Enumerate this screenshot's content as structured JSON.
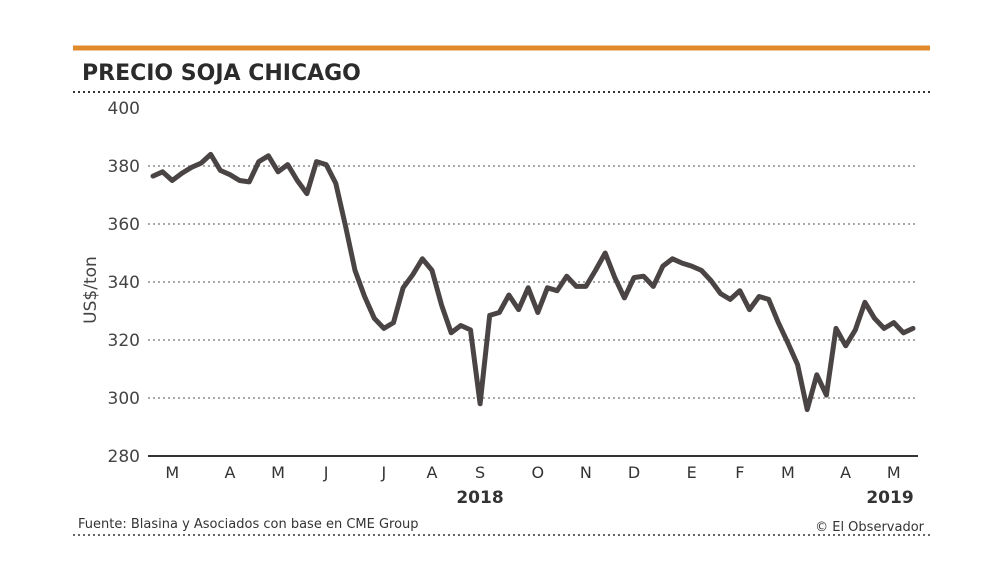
{
  "chart_data": {
    "type": "line",
    "title": "PRECIO SOJA CHICAGO",
    "y_label": "US$/ton",
    "source": "Fuente: Blasina y Asociados con base en CME Group",
    "credit": "© El Observador",
    "year_labels": [
      "2018",
      "2019"
    ],
    "categories": [
      null,
      null,
      "M",
      null,
      null,
      null,
      null,
      null,
      "A",
      null,
      null,
      null,
      null,
      "M",
      null,
      null,
      null,
      null,
      "J",
      null,
      null,
      null,
      null,
      null,
      "J",
      null,
      null,
      null,
      null,
      "A",
      null,
      null,
      null,
      null,
      "S",
      null,
      null,
      null,
      null,
      null,
      "O",
      null,
      null,
      null,
      null,
      "N",
      null,
      null,
      null,
      null,
      "D",
      null,
      null,
      null,
      null,
      null,
      "E",
      null,
      null,
      null,
      null,
      "F",
      null,
      null,
      null,
      null,
      "M",
      null,
      null,
      null,
      null,
      null,
      "A",
      null,
      null,
      null,
      null,
      "M",
      null,
      null
    ],
    "series": [
      {
        "color": "#4a4544",
        "values": [
          376.5,
          378,
          375,
          377.5,
          379.5,
          381,
          384,
          378.5,
          377,
          375,
          374.5,
          381.5,
          383.5,
          378,
          380.5,
          375,
          370.5,
          381.5,
          380.5,
          374,
          359.5,
          344,
          335,
          327.5,
          324,
          326,
          338,
          342.5,
          348,
          344,
          332,
          322.5,
          325,
          323.5,
          298,
          328.5,
          329.5,
          335.5,
          330.5,
          338,
          329.5,
          338,
          337,
          342,
          338.5,
          338.5,
          344,
          350,
          341.5,
          334.5,
          341.5,
          342,
          338.5,
          345.5,
          348,
          346.5,
          345.5,
          344,
          340.5,
          336,
          334,
          337,
          330.5,
          335,
          334,
          326,
          319,
          311.5,
          296,
          308,
          301,
          324,
          318,
          323.5,
          333,
          327.5,
          324,
          326,
          322.5,
          324
        ]
      }
    ],
    "ylim": [
      280,
      400
    ],
    "yticks": [
      280,
      300,
      320,
      340,
      360,
      380,
      400
    ],
    "grid": true,
    "accent_color": "#e08a2c"
  }
}
